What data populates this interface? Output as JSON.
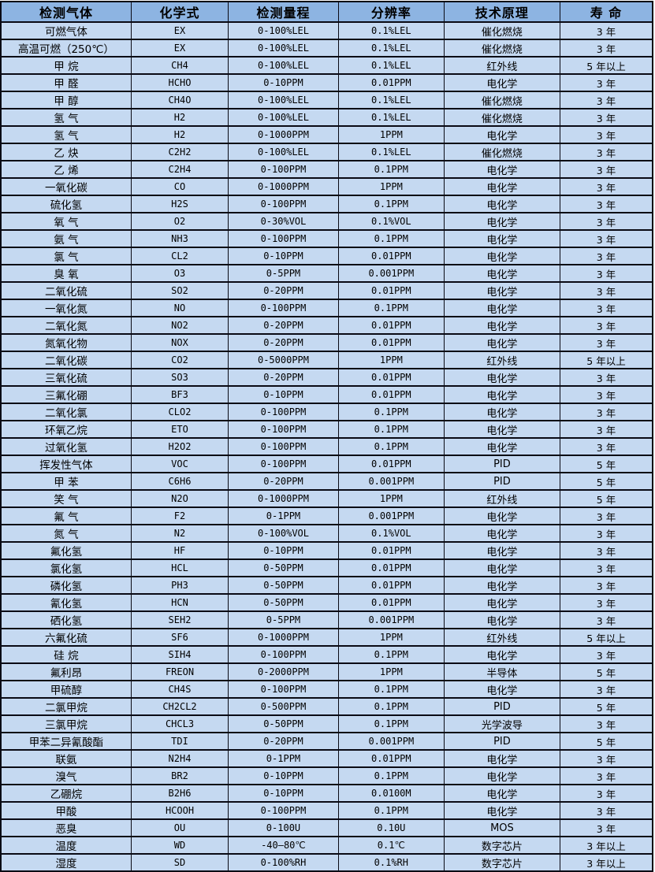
{
  "colors": {
    "header_bg": "#8db4e2",
    "row_bg": "#c5d9f1",
    "border": "#0a0a14",
    "text": "#000000"
  },
  "table": {
    "columns": [
      "检测气体",
      "化学式",
      "检测量程",
      "分辨率",
      "技术原理",
      "寿 命"
    ],
    "rows": [
      [
        "可燃气体",
        "EX",
        "0-100%LEL",
        "0.1%LEL",
        "催化燃烧",
        "3 年"
      ],
      [
        "高温可燃（250℃）",
        "EX",
        "0-100%LEL",
        "0.1%LEL",
        "催化燃烧",
        "3 年"
      ],
      [
        "甲 烷",
        "CH4",
        "0-100%LEL",
        "0.1%LEL",
        "红外线",
        "5 年以上"
      ],
      [
        "甲 醛",
        "HCHO",
        "0-10PPM",
        "0.01PPM",
        "电化学",
        "3 年"
      ],
      [
        "甲 醇",
        "CH4O",
        "0-100%LEL",
        "0.1%LEL",
        "催化燃烧",
        "3 年"
      ],
      [
        "氢 气",
        "H2",
        "0-100%LEL",
        "0.1%LEL",
        "催化燃烧",
        "3 年"
      ],
      [
        "氢 气",
        "H2",
        "0-1000PPM",
        "1PPM",
        "电化学",
        "3 年"
      ],
      [
        "乙 炔",
        "C2H2",
        "0-100%LEL",
        "0.1%LEL",
        "催化燃烧",
        "3 年"
      ],
      [
        "乙 烯",
        "C2H4",
        "0-100PPM",
        "0.1PPM",
        "电化学",
        "3 年"
      ],
      [
        "一氧化碳",
        "CO",
        "0-1000PPM",
        "1PPM",
        "电化学",
        "3 年"
      ],
      [
        "硫化氢",
        "H2S",
        "0-100PPM",
        "0.1PPM",
        "电化学",
        "3 年"
      ],
      [
        "氧 气",
        "O2",
        "0-30%VOL",
        "0.1%VOL",
        "电化学",
        "3 年"
      ],
      [
        "氨 气",
        "NH3",
        "0-100PPM",
        "0.1PPM",
        "电化学",
        "3 年"
      ],
      [
        "氯 气",
        "CL2",
        "0-10PPM",
        "0.01PPM",
        "电化学",
        "3 年"
      ],
      [
        "臭 氧",
        "O3",
        "0-5PPM",
        "0.001PPM",
        "电化学",
        "3 年"
      ],
      [
        "二氧化硫",
        "SO2",
        "0-20PPM",
        "0.01PPM",
        "电化学",
        "3 年"
      ],
      [
        "一氧化氮",
        "NO",
        "0-100PPM",
        "0.1PPM",
        "电化学",
        "3 年"
      ],
      [
        "二氧化氮",
        "NO2",
        "0-20PPM",
        "0.01PPM",
        "电化学",
        "3 年"
      ],
      [
        "氮氧化物",
        "NOX",
        "0-20PPM",
        "0.01PPM",
        "电化学",
        "3 年"
      ],
      [
        "二氧化碳",
        "CO2",
        "0-5000PPM",
        "1PPM",
        "红外线",
        "5 年以上"
      ],
      [
        "三氧化硫",
        "SO3",
        "0-20PPM",
        "0.01PPM",
        "电化学",
        "3 年"
      ],
      [
        "三氟化硼",
        "BF3",
        "0-10PPM",
        "0.01PPM",
        "电化学",
        "3 年"
      ],
      [
        "二氧化氯",
        "CLO2",
        "0-100PPM",
        "0.1PPM",
        "电化学",
        "3 年"
      ],
      [
        "环氧乙烷",
        "ETO",
        "0-100PPM",
        "0.1PPM",
        "电化学",
        "3 年"
      ],
      [
        "过氧化氢",
        "H2O2",
        "0-100PPM",
        "0.1PPM",
        "电化学",
        "3 年"
      ],
      [
        "挥发性气体",
        "VOC",
        "0-100PPM",
        "0.01PPM",
        "PID",
        "5 年"
      ],
      [
        "甲 苯",
        "C6H6",
        "0-20PPM",
        "0.001PPM",
        "PID",
        "5 年"
      ],
      [
        "笑 气",
        "N2O",
        "0-1000PPM",
        "1PPM",
        "红外线",
        "5 年"
      ],
      [
        "氟 气",
        "F2",
        "0-1PPM",
        "0.001PPM",
        "电化学",
        "3 年"
      ],
      [
        "氮 气",
        "N2",
        "0-100%VOL",
        "0.1%VOL",
        "电化学",
        "3 年"
      ],
      [
        "氟化氢",
        "HF",
        "0-10PPM",
        "0.01PPM",
        "电化学",
        "3 年"
      ],
      [
        "氯化氢",
        "HCL",
        "0-50PPM",
        "0.01PPM",
        "电化学",
        "3 年"
      ],
      [
        "磷化氢",
        "PH3",
        "0-50PPM",
        "0.01PPM",
        "电化学",
        "3 年"
      ],
      [
        "氰化氢",
        "HCN",
        "0-50PPM",
        "0.01PPM",
        "电化学",
        "3 年"
      ],
      [
        "硒化氢",
        "SEH2",
        "0-5PPM",
        "0.001PPM",
        "电化学",
        "3 年"
      ],
      [
        "六氟化硫",
        "SF6",
        "0-1000PPM",
        "1PPM",
        "红外线",
        "5 年以上"
      ],
      [
        "硅 烷",
        "SIH4",
        "0-100PPM",
        "0.1PPM",
        "电化学",
        "3 年"
      ],
      [
        "氟利昂",
        "FREON",
        "0-2000PPM",
        "1PPM",
        "半导体",
        "5 年"
      ],
      [
        "甲硫醇",
        "CH4S",
        "0-100PPM",
        "0.1PPM",
        "电化学",
        "3 年"
      ],
      [
        "二氯甲烷",
        "CH2CL2",
        "0-500PPM",
        "0.1PPM",
        "PID",
        "5 年"
      ],
      [
        "三氯甲烷",
        "CHCL3",
        "0-50PPM",
        "0.1PPM",
        "光学波导",
        "3 年"
      ],
      [
        "甲苯二异氰酸酯",
        "TDI",
        "0-20PPM",
        "0.001PPM",
        "PID",
        "5 年"
      ],
      [
        "联氨",
        "N2H4",
        "0-1PPM",
        "0.01PPM",
        "电化学",
        "3 年"
      ],
      [
        "溴气",
        "BR2",
        "0-10PPM",
        "0.1PPM",
        "电化学",
        "3 年"
      ],
      [
        "乙硼烷",
        "B2H6",
        "0-10PPM",
        "0.0100M",
        "电化学",
        "3 年"
      ],
      [
        "甲酸",
        "HCOOH",
        "0-100PPM",
        "0.1PPM",
        "电化学",
        "3 年"
      ],
      [
        "恶臭",
        "OU",
        "0-100U",
        "0.10U",
        "MOS",
        "3 年"
      ],
      [
        "温度",
        "WD",
        "-40—80℃",
        "0.1℃",
        "数字芯片",
        "3 年以上"
      ],
      [
        "湿度",
        "SD",
        "0-100%RH",
        "0.1%RH",
        "数字芯片",
        "3 年以上"
      ]
    ]
  }
}
